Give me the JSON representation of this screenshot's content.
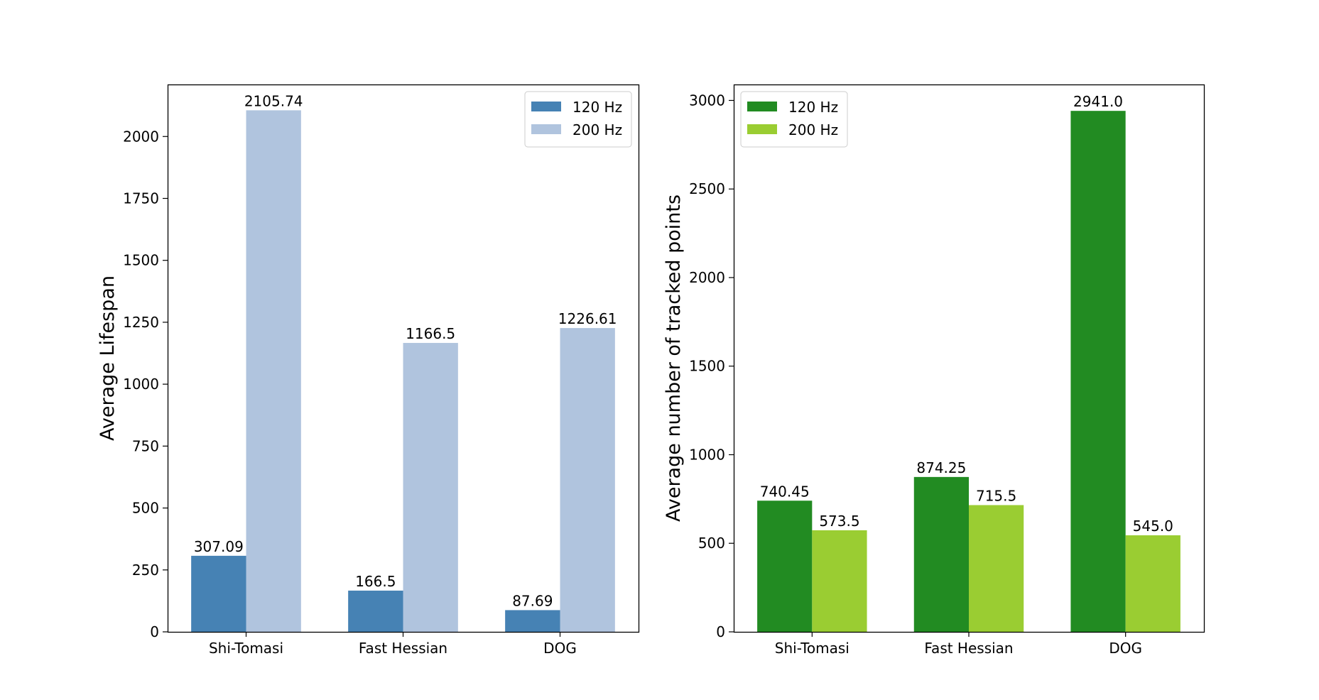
{
  "chart_data": [
    {
      "type": "bar",
      "categories": [
        "Shi-Tomasi",
        "Fast Hessian",
        "DOG"
      ],
      "series": [
        {
          "name": "120 Hz",
          "values": [
            307.09,
            166.5,
            87.69
          ],
          "labels": [
            "307.09",
            "166.5",
            "87.69"
          ],
          "color": "#4682b4"
        },
        {
          "name": "200 Hz",
          "values": [
            2105.74,
            1166.5,
            1226.61
          ],
          "labels": [
            "2105.74",
            "1166.5",
            "1226.61"
          ],
          "color": "#b0c4de"
        }
      ],
      "title": "",
      "xlabel": "",
      "ylabel": "Average Lifespan",
      "ylim": [
        0,
        2210
      ],
      "yticks": [
        0,
        250,
        500,
        750,
        1000,
        1250,
        1500,
        1750,
        2000
      ],
      "grid": false,
      "legend_position": "upper right"
    },
    {
      "type": "bar",
      "categories": [
        "Shi-Tomasi",
        "Fast Hessian",
        "DOG"
      ],
      "series": [
        {
          "name": "120 Hz",
          "values": [
            740.45,
            874.25,
            2941.0
          ],
          "labels": [
            "740.45",
            "874.25",
            "2941.0"
          ],
          "color": "#228b22"
        },
        {
          "name": "200 Hz",
          "values": [
            573.5,
            715.5,
            545.0
          ],
          "labels": [
            "573.5",
            "715.5",
            "545.0"
          ],
          "color": "#9acd32"
        }
      ],
      "title": "",
      "xlabel": "",
      "ylabel": "Average number of tracked points",
      "ylim": [
        0,
        3090
      ],
      "yticks": [
        0,
        500,
        1000,
        1500,
        2000,
        2500,
        3000
      ],
      "grid": false,
      "legend_position": "upper left"
    }
  ]
}
